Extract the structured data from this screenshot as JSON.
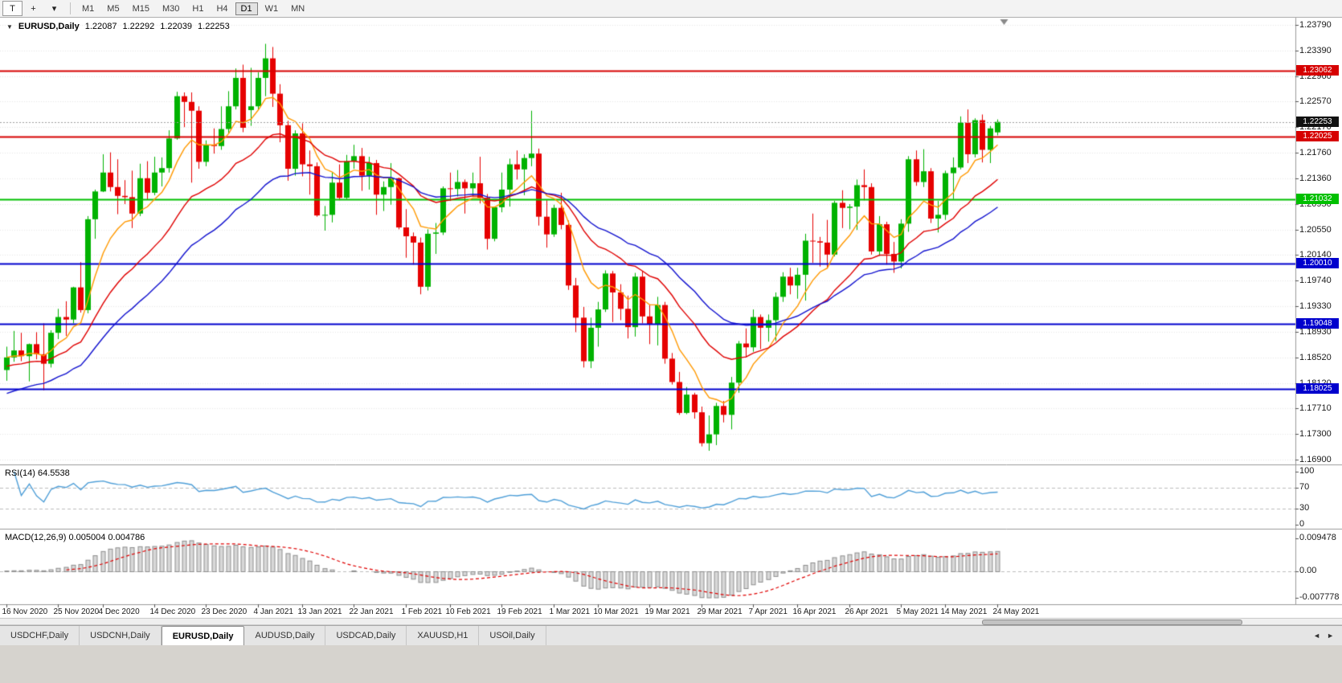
{
  "toolbar": {
    "tools": [
      {
        "name": "text-tool-button",
        "glyph": "T",
        "bordered": true
      },
      {
        "name": "crosshair-tool-button",
        "glyph": "+",
        "bordered": false
      },
      {
        "name": "tools-dropdown-button",
        "glyph": "▾",
        "bordered": false
      }
    ],
    "timeframes": [
      "M1",
      "M5",
      "M15",
      "M30",
      "H1",
      "H4",
      "D1",
      "W1",
      "MN"
    ],
    "active_timeframe": "D1"
  },
  "chart": {
    "header": {
      "expander": "▼",
      "symbol": "EURUSD,Daily",
      "open": "1.22087",
      "high": "1.22292",
      "low": "1.22039",
      "close": "1.22253"
    },
    "hlines": [
      {
        "price": 1.23062,
        "label": "1.23062",
        "color": "#d60000"
      },
      {
        "price": 1.22025,
        "label": "1.22025",
        "color": "#d60000"
      },
      {
        "price": 1.21032,
        "label": "1.21032",
        "color": "#00c000"
      },
      {
        "price": 1.2001,
        "label": "1.20010",
        "color": "#0000cd"
      },
      {
        "price": 1.19048,
        "label": "1.19048",
        "color": "#0000cd"
      },
      {
        "price": 1.18025,
        "label": "1.18025",
        "color": "#0000cd"
      }
    ],
    "current_price": {
      "value": 1.22253,
      "label": "1.22253"
    }
  },
  "rsi": {
    "title": "RSI(14) 64.5538",
    "period": 14,
    "value": 64.5538,
    "levels": [
      {
        "v": 100,
        "label": "100"
      },
      {
        "v": 70,
        "label": "70"
      },
      {
        "v": 30,
        "label": "30"
      },
      {
        "v": 0,
        "label": "0"
      }
    ]
  },
  "macd": {
    "title": "MACD(12,26,9) 0.005004 0.004786",
    "fast": 12,
    "slow": 26,
    "signal": 9,
    "main_value": 0.005004,
    "signal_value": 0.004786,
    "axis": [
      {
        "v": 0.009478,
        "label": "0.009478"
      },
      {
        "v": 0,
        "label": "0.00"
      },
      {
        "v": -0.007778,
        "label": "-0.007778"
      }
    ]
  },
  "chart_data": {
    "type": "candlestick",
    "symbol": "EURUSD",
    "timeframe": "Daily",
    "title": "EURUSD,Daily",
    "y_axis": {
      "max": 1.2379,
      "min": 1.169,
      "tick_labels": [
        "1.23790",
        "1.23390",
        "1.22960",
        "1.22570",
        "1.22170",
        "1.21760",
        "1.21360",
        "1.20950",
        "1.20550",
        "1.20140",
        "1.19740",
        "1.19330",
        "1.18930",
        "1.18520",
        "1.18120",
        "1.17710",
        "1.17300",
        "1.16900"
      ]
    },
    "x_labels": [
      "16 Nov 2020",
      "25 Nov 2020",
      "4 Dec 2020",
      "14 Dec 2020",
      "23 Dec 2020",
      "4 Jan 2021",
      "13 Jan 2021",
      "22 Jan 2021",
      "1 Feb 2021",
      "10 Feb 2021",
      "19 Feb 2021",
      "1 Mar 2021",
      "10 Mar 2021",
      "19 Mar 2021",
      "29 Mar 2021",
      "7 Apr 2021",
      "16 Apr 2021",
      "26 Apr 2021",
      "5 May 2021",
      "14 May 2021",
      "24 May 2021"
    ],
    "ohlc": [
      [
        1.1832,
        1.1869,
        1.1815,
        1.1852
      ],
      [
        1.1852,
        1.1894,
        1.1845,
        1.1863
      ],
      [
        1.1863,
        1.1891,
        1.1846,
        1.1854
      ],
      [
        1.1854,
        1.1874,
        1.1814,
        1.1873
      ],
      [
        1.1873,
        1.1892,
        1.1849,
        1.1857
      ],
      [
        1.1857,
        1.1906,
        1.18,
        1.1842
      ],
      [
        1.1842,
        1.1895,
        1.1836,
        1.1891
      ],
      [
        1.1891,
        1.1929,
        1.1881,
        1.1916
      ],
      [
        1.1916,
        1.1941,
        1.1886,
        1.1912
      ],
      [
        1.1912,
        1.1964,
        1.1906,
        1.1963
      ],
      [
        1.1963,
        1.2003,
        1.1923,
        1.1927
      ],
      [
        1.1927,
        1.2076,
        1.1922,
        1.2071
      ],
      [
        1.2071,
        1.2118,
        1.204,
        1.2115
      ],
      [
        1.2115,
        1.2174,
        1.2114,
        1.2145
      ],
      [
        1.2145,
        1.2177,
        1.2115,
        1.2122
      ],
      [
        1.2122,
        1.2166,
        1.2079,
        1.2108
      ],
      [
        1.2108,
        1.2133,
        1.2095,
        1.2106
      ],
      [
        1.2106,
        1.2148,
        1.2057,
        1.208
      ],
      [
        1.208,
        1.2159,
        1.2076,
        1.2136
      ],
      [
        1.2136,
        1.2163,
        1.2102,
        1.2113
      ],
      [
        1.2113,
        1.217,
        1.2109,
        1.2145
      ],
      [
        1.2145,
        1.2169,
        1.2123,
        1.2152
      ],
      [
        1.2152,
        1.2212,
        1.2145,
        1.2199
      ],
      [
        1.2199,
        1.2273,
        1.2197,
        1.2266
      ],
      [
        1.2266,
        1.2272,
        1.2217,
        1.2257
      ],
      [
        1.2257,
        1.2272,
        1.2129,
        1.2243
      ],
      [
        1.2243,
        1.225,
        1.2151,
        1.2162
      ],
      [
        1.2162,
        1.2196,
        1.2155,
        1.2189
      ],
      [
        1.2189,
        1.2215,
        1.2175,
        1.2187
      ],
      [
        1.2187,
        1.225,
        1.2181,
        1.2214
      ],
      [
        1.2214,
        1.2274,
        1.2206,
        1.225
      ],
      [
        1.225,
        1.231,
        1.2245,
        1.2295
      ],
      [
        1.2295,
        1.2316,
        1.2209,
        1.2216
      ],
      [
        1.2244,
        1.2311,
        1.2219,
        1.225
      ],
      [
        1.225,
        1.2304,
        1.2244,
        1.2295
      ],
      [
        1.2295,
        1.2349,
        1.2266,
        1.2326
      ],
      [
        1.2326,
        1.2344,
        1.2249,
        1.227
      ],
      [
        1.227,
        1.2285,
        1.2193,
        1.222
      ],
      [
        1.222,
        1.2227,
        1.2132,
        1.2151
      ],
      [
        1.2151,
        1.2212,
        1.214,
        1.2207
      ],
      [
        1.2207,
        1.2223,
        1.2139,
        1.2158
      ],
      [
        1.2158,
        1.218,
        1.211,
        1.2155
      ],
      [
        1.2155,
        1.2161,
        1.2075,
        1.2077
      ],
      [
        1.2077,
        1.2092,
        1.2053,
        1.2078
      ],
      [
        1.2078,
        1.2145,
        1.2066,
        1.2129
      ],
      [
        1.2129,
        1.2158,
        1.2101,
        1.2105
      ],
      [
        1.2105,
        1.2173,
        1.2103,
        1.2163
      ],
      [
        1.2163,
        1.2189,
        1.2151,
        1.2171
      ],
      [
        1.2171,
        1.2184,
        1.2116,
        1.214
      ],
      [
        1.214,
        1.217,
        1.2118,
        1.216
      ],
      [
        1.216,
        1.2165,
        1.2078,
        1.211
      ],
      [
        1.211,
        1.2131,
        1.2084,
        1.2122
      ],
      [
        1.2122,
        1.216,
        1.2094,
        1.2136
      ],
      [
        1.2136,
        1.2137,
        1.2055,
        1.2058
      ],
      [
        1.2058,
        1.2087,
        1.201,
        1.2044
      ],
      [
        1.2044,
        1.205,
        1.1999,
        1.2034
      ],
      [
        1.2034,
        1.2042,
        1.1952,
        1.1964
      ],
      [
        1.1964,
        1.2055,
        1.1958,
        1.2048
      ],
      [
        1.2048,
        1.2065,
        1.2016,
        1.205
      ],
      [
        1.205,
        1.2123,
        1.2046,
        1.212
      ],
      [
        1.212,
        1.2145,
        1.21,
        1.2119
      ],
      [
        1.2119,
        1.2149,
        1.2107,
        1.213
      ],
      [
        1.213,
        1.2134,
        1.208,
        1.212
      ],
      [
        1.212,
        1.2145,
        1.2107,
        1.2128
      ],
      [
        1.2128,
        1.217,
        1.2096,
        1.2105
      ],
      [
        1.2105,
        1.2111,
        1.2023,
        1.204
      ],
      [
        1.204,
        1.2091,
        1.2036,
        1.209
      ],
      [
        1.209,
        1.2145,
        1.2082,
        1.2118
      ],
      [
        1.2118,
        1.2167,
        1.2091,
        1.2158
      ],
      [
        1.2158,
        1.218,
        1.2134,
        1.215
      ],
      [
        1.215,
        1.2174,
        1.2109,
        1.2168
      ],
      [
        1.2168,
        1.2243,
        1.2155,
        1.2175
      ],
      [
        1.2175,
        1.2183,
        1.2061,
        1.2075
      ],
      [
        1.2075,
        1.2101,
        1.2026,
        1.2047
      ],
      [
        1.2047,
        1.2094,
        1.2043,
        1.2089
      ],
      [
        1.2089,
        1.2113,
        1.2055,
        1.2062
      ],
      [
        1.2062,
        1.2069,
        1.1959,
        1.1966
      ],
      [
        1.1966,
        1.1978,
        1.1892,
        1.1915
      ],
      [
        1.1915,
        1.1932,
        1.1836,
        1.1846
      ],
      [
        1.1846,
        1.1915,
        1.1835,
        1.1899
      ],
      [
        1.1899,
        1.194,
        1.1869,
        1.1928
      ],
      [
        1.1928,
        1.199,
        1.1924,
        1.1985
      ],
      [
        1.1985,
        1.1989,
        1.1908,
        1.1955
      ],
      [
        1.1955,
        1.1968,
        1.1911,
        1.1929
      ],
      [
        1.1929,
        1.195,
        1.1882,
        1.19
      ],
      [
        1.19,
        1.1986,
        1.1885,
        1.198
      ],
      [
        1.198,
        1.1989,
        1.1906,
        1.1917
      ],
      [
        1.1917,
        1.1936,
        1.1873,
        1.1905
      ],
      [
        1.1905,
        1.1948,
        1.1871,
        1.1935
      ],
      [
        1.1935,
        1.194,
        1.1842,
        1.185
      ],
      [
        1.185,
        1.1859,
        1.1809,
        1.1813
      ],
      [
        1.1813,
        1.1829,
        1.1761,
        1.1764
      ],
      [
        1.1764,
        1.1805,
        1.1762,
        1.1793
      ],
      [
        1.1793,
        1.1796,
        1.1755,
        1.1765
      ],
      [
        1.1765,
        1.1774,
        1.1711,
        1.1716
      ],
      [
        1.1716,
        1.176,
        1.1704,
        1.173
      ],
      [
        1.173,
        1.178,
        1.1713,
        1.1775
      ],
      [
        1.1775,
        1.1783,
        1.1749,
        1.1761
      ],
      [
        1.1761,
        1.1821,
        1.1738,
        1.1812
      ],
      [
        1.1812,
        1.1878,
        1.1796,
        1.1874
      ],
      [
        1.1874,
        1.1898,
        1.1852,
        1.1868
      ],
      [
        1.1868,
        1.1928,
        1.1861,
        1.1916
      ],
      [
        1.1916,
        1.192,
        1.1865,
        1.1899
      ],
      [
        1.1899,
        1.192,
        1.1877,
        1.1911
      ],
      [
        1.1911,
        1.1955,
        1.1878,
        1.1948
      ],
      [
        1.1948,
        1.1987,
        1.194,
        1.198
      ],
      [
        1.198,
        1.1994,
        1.1952,
        1.1966
      ],
      [
        1.1966,
        1.1994,
        1.1945,
        1.1983
      ],
      [
        1.1983,
        1.2048,
        1.1942,
        1.2037
      ],
      [
        1.2037,
        1.208,
        1.2002,
        1.2036
      ],
      [
        1.2036,
        1.2043,
        1.1996,
        1.2034
      ],
      [
        1.2034,
        1.207,
        1.1993,
        1.2015
      ],
      [
        1.2015,
        1.21,
        1.2012,
        1.2097
      ],
      [
        1.2097,
        1.2117,
        1.2057,
        1.2089
      ],
      [
        1.2089,
        1.2095,
        1.2055,
        1.2091
      ],
      [
        1.2091,
        1.2134,
        1.2054,
        1.2125
      ],
      [
        1.2125,
        1.215,
        1.2101,
        1.2122
      ],
      [
        1.2122,
        1.2128,
        1.2015,
        1.202
      ],
      [
        1.202,
        1.2076,
        1.2013,
        1.2063
      ],
      [
        1.2063,
        1.2067,
        1.1999,
        1.2016
      ],
      [
        1.2016,
        1.2035,
        1.1986,
        1.2004
      ],
      [
        1.2004,
        1.2071,
        1.1993,
        1.2064
      ],
      [
        1.2064,
        1.2171,
        1.2051,
        1.2166
      ],
      [
        1.2166,
        1.218,
        1.2124,
        1.213
      ],
      [
        1.213,
        1.2182,
        1.2122,
        1.2147
      ],
      [
        1.2147,
        1.2152,
        1.2065,
        1.2072
      ],
      [
        1.2072,
        1.21,
        1.205,
        1.2078
      ],
      [
        1.2078,
        1.2148,
        1.207,
        1.2144
      ],
      [
        1.2144,
        1.2169,
        1.2103,
        1.2153
      ],
      [
        1.2153,
        1.2234,
        1.215,
        1.2224
      ],
      [
        1.2224,
        1.2245,
        1.216,
        1.2174
      ],
      [
        1.2174,
        1.2231,
        1.2169,
        1.2228
      ],
      [
        1.2228,
        1.2237,
        1.2161,
        1.2181
      ],
      [
        1.2181,
        1.2219,
        1.216,
        1.2215
      ],
      [
        1.22087,
        1.22292,
        1.22039,
        1.22253
      ]
    ],
    "overlays": [
      {
        "name": "fast-ma",
        "type": "ema",
        "period": 8,
        "color": "#ff9900",
        "seed": 1.1852
      },
      {
        "name": "mid-ma",
        "type": "ema",
        "period": 20,
        "color": "#e00000",
        "seed": 1.1838
      },
      {
        "name": "slow-ma",
        "type": "ema",
        "period": 34,
        "color": "#1212cf",
        "seed": 1.1795
      }
    ]
  },
  "tabs": {
    "items": [
      {
        "label": "USDCHF,Daily",
        "active": false
      },
      {
        "label": "USDCNH,Daily",
        "active": false
      },
      {
        "label": "EURUSD,Daily",
        "active": true
      },
      {
        "label": "AUDUSD,Daily",
        "active": false
      },
      {
        "label": "USDCAD,Daily",
        "active": false
      },
      {
        "label": "XAUUSD,H1",
        "active": false
      },
      {
        "label": "USOil,Daily",
        "active": false
      }
    ],
    "scroll_left": "◄",
    "scroll_right": "►"
  },
  "colors": {
    "bull": "#00b200",
    "bear": "#e60000",
    "grid": "#e7e7e7",
    "panel_border": "#9a9a9a",
    "rsi_line": "#4f9fd8",
    "rsi_levels": "#bdbdbd",
    "macd_hist_fill": "#d8d8d8",
    "macd_hist_stroke": "#8e8e8e",
    "macd_signal": "#e00000",
    "current_line": "#a0a0a0",
    "current_label_bg": "#111111"
  }
}
